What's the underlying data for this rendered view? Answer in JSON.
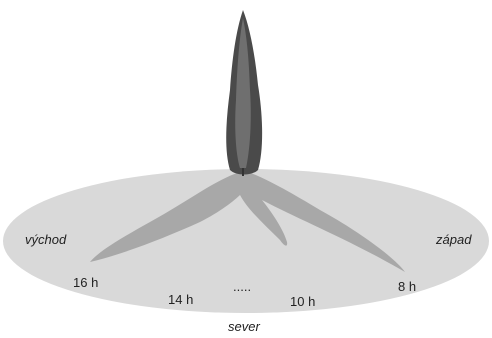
{
  "labels": {
    "east": "východ",
    "west": "západ",
    "north": "sever"
  },
  "hours": [
    "16 h",
    "14 h",
    ".....",
    "10 h",
    "8 h"
  ]
}
